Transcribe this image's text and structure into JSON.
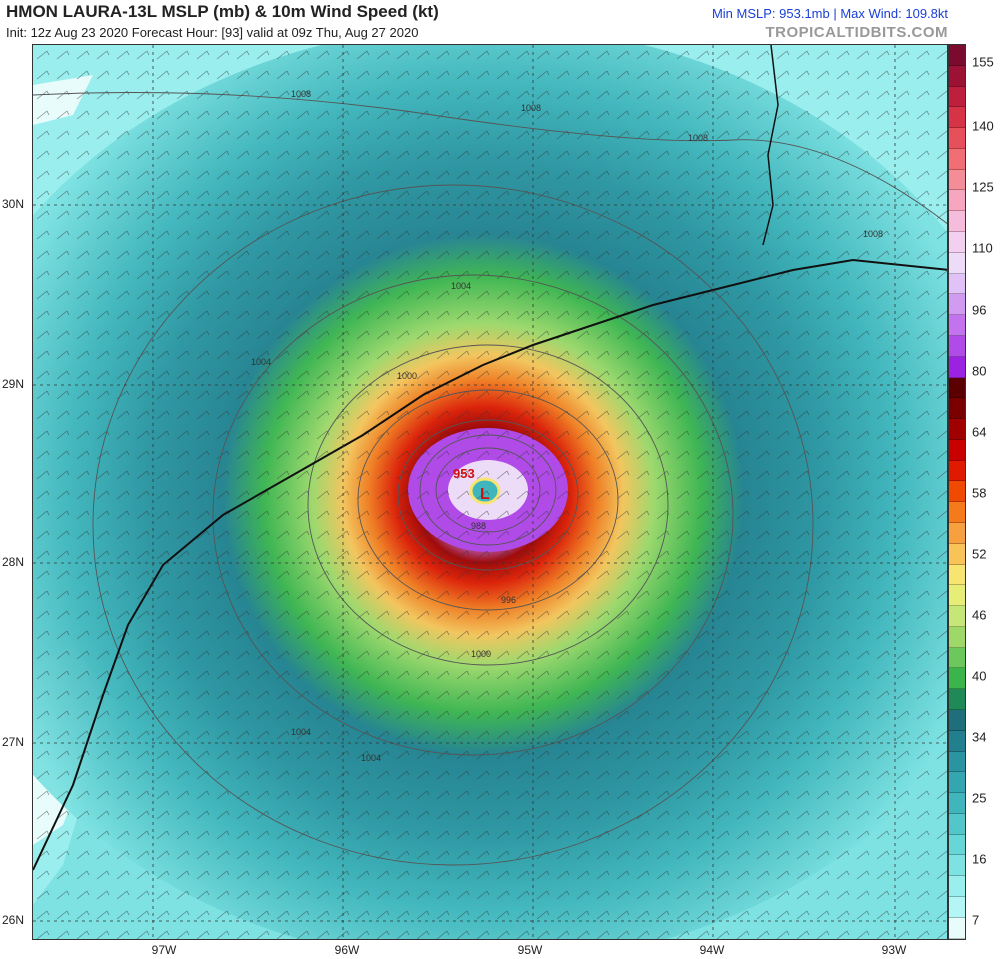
{
  "header": {
    "title": "HMON LAURA-13L MSLP (mb) & 10m Wind Speed (kt)",
    "subtitle": "Init: 12z Aug 23 2020   Forecast Hour: [93]   valid at 09z Thu, Aug 27 2020",
    "stats": "Min MSLP: 953.1mb | Max Wind: 109.8kt",
    "brand": "TROPICALTIDBITS.COM"
  },
  "axes": {
    "lat_labels": [
      "30N",
      "29N",
      "28N",
      "27N",
      "26N"
    ],
    "lon_labels": [
      "97W",
      "96W",
      "95W",
      "94W",
      "93W"
    ]
  },
  "storm": {
    "center_label": "L",
    "min_pressure_label": "953"
  },
  "isobar_labels": [
    "1008",
    "1008",
    "1008",
    "1008",
    "1004",
    "1004",
    "1004",
    "1004",
    "1000",
    "1000",
    "996",
    "988"
  ],
  "colorbar": {
    "labels": [
      "155",
      "140",
      "125",
      "110",
      "96",
      "80",
      "64",
      "58",
      "52",
      "46",
      "40",
      "34",
      "25",
      "16",
      "7"
    ],
    "colors": [
      "#7a0a2e",
      "#9c1234",
      "#bd1f3d",
      "#d63346",
      "#e6505a",
      "#f06e74",
      "#f58d98",
      "#f7a6c0",
      "#f6bcdc",
      "#f3cff0",
      "#ecdcf8",
      "#e0c2f6",
      "#d29bf2",
      "#c273ed",
      "#b04be8",
      "#9b22e0",
      "#5a0000",
      "#7a0000",
      "#a00000",
      "#c80000",
      "#e01a00",
      "#f04a00",
      "#f57a1c",
      "#f7a040",
      "#f8c458",
      "#f8e470",
      "#e6ee78",
      "#c6e678",
      "#9ed868",
      "#6cc85c",
      "#3cb44c",
      "#1f8a58",
      "#1e6e7c",
      "#22808e",
      "#2a94a0",
      "#34a6b0",
      "#40b6bc",
      "#52c6c8",
      "#66d6d6",
      "#7ee2e2",
      "#9aeeee",
      "#b4f6f6",
      "#e8fcfc"
    ]
  }
}
